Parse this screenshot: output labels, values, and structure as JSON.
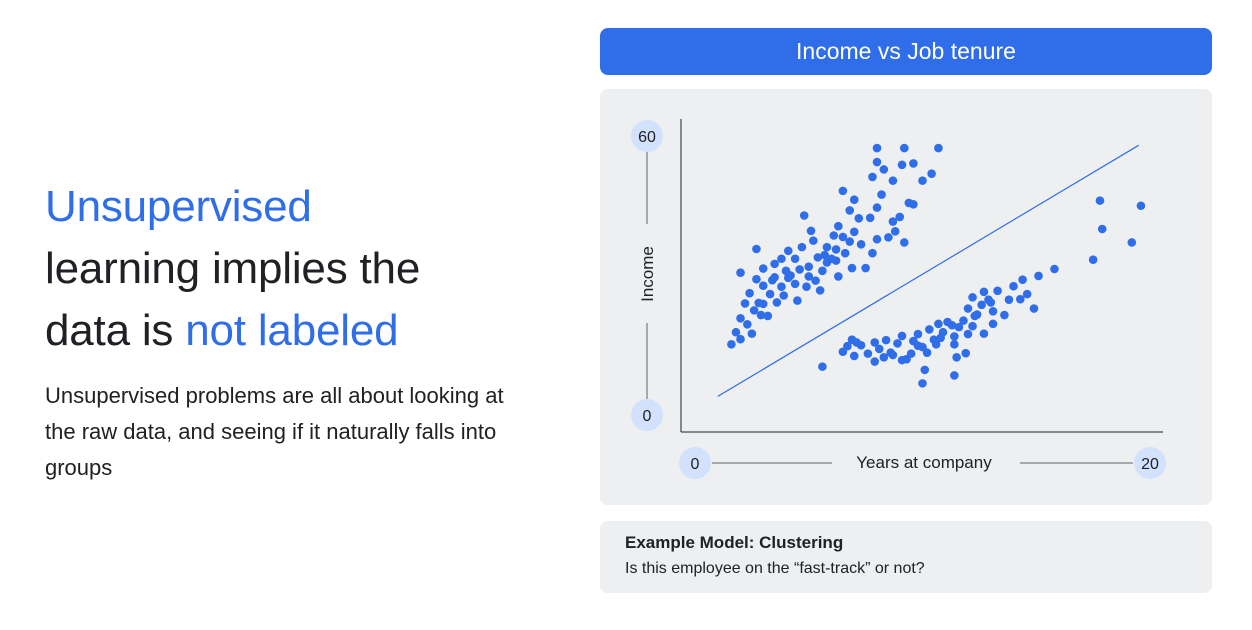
{
  "headline": {
    "part1": "Unsupervised",
    "part2": "learning implies the",
    "part3": "data is ",
    "part4": "not labeled"
  },
  "body_text": "Unsupervised problems are all about looking at the raw data, and seeing if it naturally falls into groups",
  "chart_title": "Income vs Job tenure",
  "note": {
    "title": "Example Model: Clustering",
    "text": "Is this employee on the “fast-track” or not?"
  },
  "colors": {
    "accent": "#2f6ee8",
    "panel": "#eeeff1",
    "badge": "#d2e1fc"
  },
  "chart_data": {
    "type": "scatter",
    "title": "Income vs Job tenure",
    "xlabel": "Years at company",
    "ylabel": "Income",
    "xlim": [
      0,
      20
    ],
    "ylim": [
      0,
      60
    ],
    "x_tick_labels": [
      "0",
      "20"
    ],
    "y_tick_labels": [
      "0",
      "60"
    ],
    "trend_line": [
      [
        1,
        4
      ],
      [
        19.5,
        58
      ]
    ],
    "series": [
      {
        "cluster": 1,
        "points": [
          [
            1.6,
            15.2
          ],
          [
            2.0,
            16.3
          ],
          [
            1.8,
            17.8
          ],
          [
            2.5,
            17.5
          ],
          [
            2.3,
            19.5
          ],
          [
            2.9,
            21.5
          ],
          [
            2.6,
            22.5
          ],
          [
            3.2,
            21.3
          ],
          [
            2.8,
            24.1
          ],
          [
            3.6,
            24.2
          ],
          [
            3.9,
            25.7
          ],
          [
            3.3,
            26.0
          ],
          [
            2.2,
            24.0
          ],
          [
            2.4,
            26.2
          ],
          [
            3.0,
            27.8
          ],
          [
            2.7,
            29.2
          ],
          [
            3.5,
            29.6
          ],
          [
            4.1,
            29.5
          ],
          [
            3.8,
            27.6
          ],
          [
            4.4,
            28.2
          ],
          [
            4.9,
            27.6
          ],
          [
            5.3,
            28.9
          ],
          [
            4.6,
            31.3
          ],
          [
            5.6,
            31.0
          ],
          [
            5.0,
            31.9
          ],
          [
            5.8,
            32.8
          ],
          [
            4.4,
            33.6
          ],
          [
            5.4,
            33.9
          ],
          [
            6.0,
            33.6
          ],
          [
            6.2,
            35.6
          ],
          [
            5.2,
            37.5
          ],
          [
            5.1,
            39.6
          ],
          [
            4.8,
            42.9
          ],
          [
            6.1,
            38.6
          ],
          [
            6.5,
            38.3
          ],
          [
            7.0,
            39.4
          ],
          [
            7.7,
            42.4
          ],
          [
            8.0,
            44.6
          ],
          [
            8.2,
            47.4
          ],
          [
            7.0,
            46.3
          ],
          [
            6.5,
            48.2
          ],
          [
            7.8,
            51.2
          ],
          [
            8.3,
            52.8
          ],
          [
            8.7,
            50.4
          ],
          [
            8.0,
            54.4
          ],
          [
            9.6,
            54.1
          ],
          [
            9.1,
            53.8
          ],
          [
            8.0,
            57.4
          ],
          [
            9.2,
            57.4
          ],
          [
            10.7,
            57.4
          ],
          [
            10.0,
            50.4
          ],
          [
            10.4,
            51.9
          ],
          [
            9.4,
            45.6
          ],
          [
            9.6,
            45.3
          ],
          [
            8.7,
            41.6
          ],
          [
            7.2,
            42.3
          ],
          [
            6.8,
            44.0
          ],
          [
            6.3,
            40.6
          ],
          [
            5.8,
            36.1
          ],
          [
            6.6,
            34.8
          ],
          [
            7.3,
            36.7
          ],
          [
            8.0,
            37.8
          ],
          [
            8.5,
            38.2
          ],
          [
            8.8,
            39.5
          ],
          [
            9.2,
            37.1
          ],
          [
            6.9,
            31.6
          ],
          [
            7.5,
            31.6
          ],
          [
            4.7,
            36.1
          ],
          [
            4.1,
            35.3
          ],
          [
            3.8,
            33.6
          ],
          [
            3.5,
            32.5
          ],
          [
            3.0,
            31.5
          ],
          [
            2.7,
            35.7
          ],
          [
            2.0,
            30.6
          ],
          [
            4.0,
            31.0
          ],
          [
            7.8,
            34.8
          ],
          [
            3.4,
            29.0
          ],
          [
            4.2,
            30.0
          ],
          [
            5.0,
            29.8
          ],
          [
            3.0,
            23.9
          ],
          [
            2.0,
            20.8
          ],
          [
            5.5,
            26.8
          ],
          [
            6.3,
            29.8
          ],
          [
            4.5,
            24.6
          ],
          [
            5.7,
            34.4
          ],
          [
            9.0,
            42.6
          ],
          [
            6.8,
            37.3
          ],
          [
            6.2,
            33.2
          ]
        ]
      },
      {
        "cluster": 2,
        "points": [
          [
            5.6,
            10.4
          ],
          [
            6.5,
            13.6
          ],
          [
            6.7,
            14.8
          ],
          [
            7.0,
            12.7
          ],
          [
            7.3,
            15.0
          ],
          [
            7.6,
            13.2
          ],
          [
            7.9,
            15.6
          ],
          [
            8.1,
            14.2
          ],
          [
            8.4,
            16.1
          ],
          [
            8.6,
            13.4
          ],
          [
            8.9,
            15.4
          ],
          [
            9.1,
            17.0
          ],
          [
            9.3,
            12.0
          ],
          [
            9.6,
            15.9
          ],
          [
            9.8,
            17.4
          ],
          [
            10.0,
            14.6
          ],
          [
            10.3,
            18.4
          ],
          [
            10.5,
            16.2
          ],
          [
            10.7,
            19.6
          ],
          [
            10.9,
            17.8
          ],
          [
            11.1,
            20.0
          ],
          [
            11.4,
            16.9
          ],
          [
            11.6,
            18.9
          ],
          [
            11.8,
            20.3
          ],
          [
            12.0,
            22.9
          ],
          [
            12.2,
            19.1
          ],
          [
            12.4,
            21.6
          ],
          [
            12.6,
            23.7
          ],
          [
            12.9,
            24.8
          ],
          [
            13.1,
            22.3
          ],
          [
            13.3,
            26.7
          ],
          [
            13.6,
            21.5
          ],
          [
            13.8,
            24.8
          ],
          [
            14.0,
            27.7
          ],
          [
            12.7,
            26.5
          ],
          [
            14.4,
            29.1
          ],
          [
            14.6,
            26.0
          ],
          [
            15.1,
            29.9
          ],
          [
            13.1,
            19.6
          ],
          [
            12.7,
            17.5
          ],
          [
            12.0,
            17.4
          ],
          [
            11.4,
            15.2
          ],
          [
            10.6,
            15.2
          ],
          [
            10.2,
            13.4
          ],
          [
            9.5,
            13.2
          ],
          [
            9.1,
            11.8
          ],
          [
            8.3,
            12.4
          ],
          [
            7.9,
            11.5
          ],
          [
            8.7,
            12.9
          ],
          [
            7.1,
            15.6
          ],
          [
            6.9,
            16.2
          ],
          [
            9.8,
            14.9
          ],
          [
            10.8,
            16.6
          ],
          [
            11.3,
            19.3
          ],
          [
            12.3,
            21.3
          ],
          [
            10.1,
            9.7
          ],
          [
            10.0,
            6.8
          ],
          [
            11.5,
            12.4
          ],
          [
            11.9,
            13.3
          ],
          [
            11.4,
            8.5
          ],
          [
            14.3,
            24.9
          ],
          [
            14.9,
            22.9
          ],
          [
            15.8,
            31.4
          ],
          [
            17.5,
            33.4
          ],
          [
            19.6,
            45.0
          ],
          [
            17.8,
            46.1
          ],
          [
            19.2,
            37.1
          ],
          [
            17.9,
            40.0
          ],
          [
            12.2,
            25.3
          ],
          [
            13.0,
            24.2
          ]
        ]
      }
    ]
  }
}
